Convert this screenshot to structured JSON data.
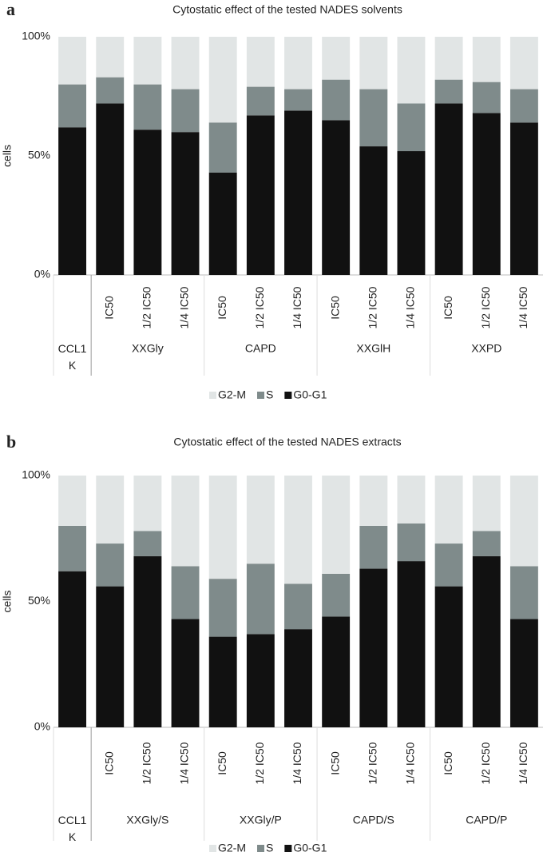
{
  "chart_data": [
    {
      "type": "stacked_bar",
      "panel_label": "a",
      "title": "Cytostatic effect of the tested NADES solvents",
      "y_label": "cells",
      "groups": [
        {
          "label": "CCL1 K",
          "categories": [
            null
          ]
        },
        {
          "label": "XXGly",
          "categories": [
            "IC50",
            "1/2 IC50",
            "1/4 IC50"
          ]
        },
        {
          "label": "CAPD",
          "categories": [
            "IC50",
            "1/2 IC50",
            "1/4 IC50"
          ]
        },
        {
          "label": "XXGlH",
          "categories": [
            "IC50",
            "1/2 IC50",
            "1/4 IC50"
          ]
        },
        {
          "label": "XXPD",
          "categories": [
            "IC50",
            "1/2 IC50",
            "1/4 IC50"
          ]
        }
      ],
      "series": [
        {
          "name": "G0-G1",
          "color": "#111111",
          "values": [
            62,
            72,
            61,
            60,
            43,
            67,
            69,
            65,
            54,
            52,
            72,
            68,
            64
          ]
        },
        {
          "name": "S",
          "color": "#7f8b8b",
          "values": [
            18,
            11,
            19,
            18,
            21,
            12,
            9,
            17,
            24,
            20,
            10,
            13,
            14
          ]
        },
        {
          "name": "G2-M",
          "color": "#e1e5e5",
          "values": [
            20,
            17,
            20,
            22,
            36,
            21,
            22,
            18,
            22,
            28,
            18,
            19,
            22
          ]
        }
      ],
      "ylim": [
        0,
        100
      ],
      "yticks": [
        {
          "value": 0,
          "label": "0%"
        },
        {
          "value": 50,
          "label": "50%"
        },
        {
          "value": 100,
          "label": "100%"
        }
      ]
    },
    {
      "type": "stacked_bar",
      "panel_label": "b",
      "title": "Cytostatic effect of the tested NADES extracts",
      "y_label": "cells",
      "groups": [
        {
          "label": "CCL1 K",
          "categories": [
            null
          ]
        },
        {
          "label": "XXGly/S",
          "categories": [
            "IC50",
            "1/2 IC50",
            "1/4 IC50"
          ]
        },
        {
          "label": "XXGly/P",
          "categories": [
            "IC50",
            "1/2 IC50",
            "1/4 IC50"
          ]
        },
        {
          "label": "CAPD/S",
          "categories": [
            "IC50",
            "1/2 IC50",
            "1/4 IC50"
          ]
        },
        {
          "label": "CAPD/P",
          "categories": [
            "IC50",
            "1/2 IC50",
            "1/4 IC50"
          ]
        }
      ],
      "series": [
        {
          "name": "G0-G1",
          "color": "#111111",
          "values": [
            62,
            56,
            68,
            43,
            36,
            37,
            39,
            44,
            63,
            66,
            56,
            68,
            43
          ]
        },
        {
          "name": "S",
          "color": "#7f8b8b",
          "values": [
            18,
            17,
            10,
            21,
            23,
            28,
            18,
            17,
            17,
            15,
            17,
            10,
            21
          ]
        },
        {
          "name": "G2-M",
          "color": "#e1e5e5",
          "values": [
            20,
            27,
            22,
            36,
            41,
            35,
            43,
            39,
            20,
            19,
            27,
            22,
            36
          ]
        }
      ],
      "ylim": [
        0,
        100
      ],
      "yticks": [
        {
          "value": 0,
          "label": "0%"
        },
        {
          "value": 50,
          "label": "50%"
        },
        {
          "value": 100,
          "label": "100%"
        }
      ]
    }
  ]
}
